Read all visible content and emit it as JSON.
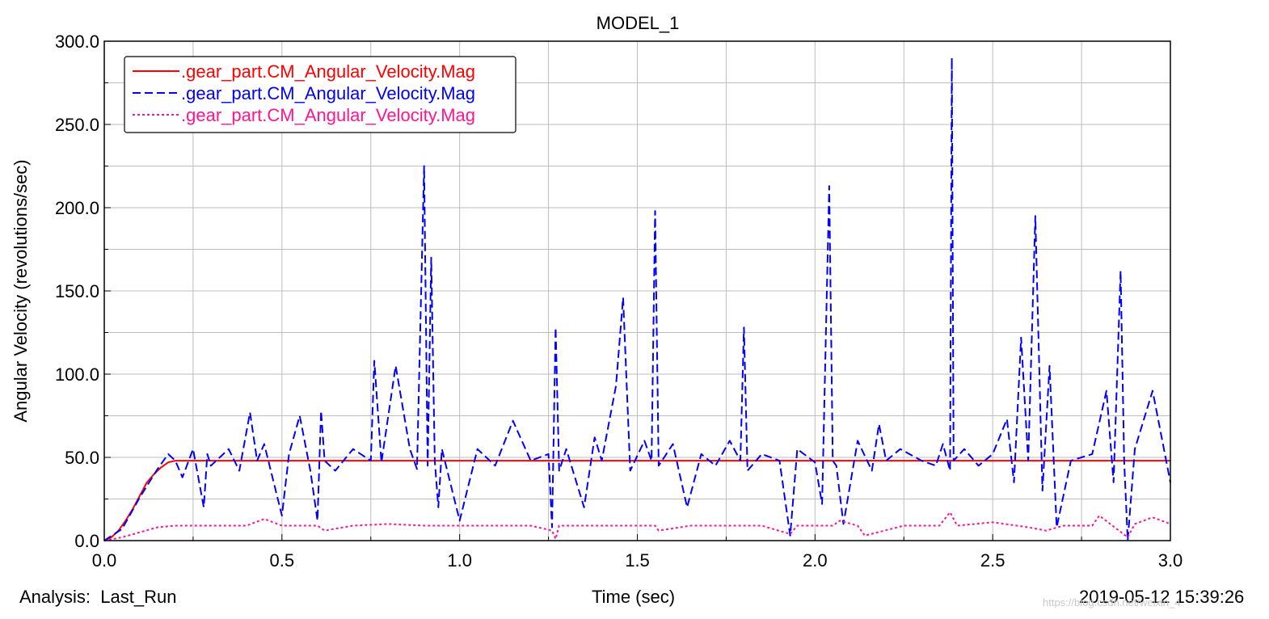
{
  "footer": {
    "analysis": "Analysis:  Last_Run",
    "timestamp": "2019-05-12 15:39:26",
    "watermark": "https://blog.csdn.net/weixin_4"
  },
  "chart_data": {
    "type": "line",
    "title": "MODEL_1",
    "xlabel": "Time (sec)",
    "ylabel": "Angular Velocity (revolutions/sec)",
    "xlim": [
      0,
      3.0
    ],
    "ylim": [
      0,
      300
    ],
    "xticks": [
      "0.0",
      "0.5",
      "1.0",
      "1.5",
      "2.0",
      "2.5",
      "3.0"
    ],
    "yticks": [
      "0.0",
      "50.0",
      "100.0",
      "150.0",
      "200.0",
      "250.0",
      "300.0"
    ],
    "grid": true,
    "legend_position": "top-left",
    "series": [
      {
        "name": ".gear_part.CM_Angular_Velocity.Mag",
        "color": "#ff0000",
        "dash": "solid",
        "x": [
          0,
          0.02,
          0.04,
          0.06,
          0.08,
          0.1,
          0.12,
          0.14,
          0.16,
          0.18,
          0.2,
          0.5,
          1.0,
          1.5,
          2.0,
          2.5,
          3.0
        ],
        "y": [
          0,
          2,
          6,
          12,
          19,
          27,
          35,
          40,
          44,
          47,
          48,
          48,
          48,
          48,
          48,
          48,
          48
        ]
      },
      {
        "name": ".gear_part.CM_Angular_Velocity.Mag",
        "color": "#0000ff",
        "dash": "dashed",
        "x": [
          0,
          0.05,
          0.1,
          0.15,
          0.18,
          0.2,
          0.22,
          0.25,
          0.28,
          0.29,
          0.3,
          0.35,
          0.38,
          0.41,
          0.43,
          0.45,
          0.5,
          0.52,
          0.55,
          0.58,
          0.6,
          0.61,
          0.62,
          0.65,
          0.7,
          0.75,
          0.76,
          0.78,
          0.82,
          0.86,
          0.88,
          0.9,
          0.91,
          0.92,
          0.93,
          0.94,
          0.95,
          1.0,
          1.05,
          1.1,
          1.15,
          1.2,
          1.25,
          1.26,
          1.27,
          1.28,
          1.3,
          1.35,
          1.38,
          1.4,
          1.44,
          1.46,
          1.48,
          1.52,
          1.54,
          1.55,
          1.56,
          1.6,
          1.64,
          1.68,
          1.72,
          1.76,
          1.79,
          1.8,
          1.81,
          1.85,
          1.9,
          1.93,
          1.95,
          2.0,
          2.02,
          2.04,
          2.05,
          2.06,
          2.08,
          2.12,
          2.16,
          2.18,
          2.2,
          2.24,
          2.3,
          2.34,
          2.36,
          2.38,
          2.385,
          2.39,
          2.42,
          2.46,
          2.5,
          2.54,
          2.56,
          2.58,
          2.6,
          2.62,
          2.64,
          2.66,
          2.68,
          2.72,
          2.78,
          2.82,
          2.84,
          2.86,
          2.87,
          2.88,
          2.9,
          2.95,
          3.0
        ],
        "y": [
          0,
          7,
          26,
          43,
          52,
          48,
          38,
          55,
          20,
          52,
          45,
          55,
          42,
          77,
          48,
          58,
          15,
          52,
          75,
          42,
          12,
          78,
          48,
          42,
          55,
          48,
          108,
          47,
          105,
          55,
          43,
          225,
          45,
          170,
          48,
          20,
          55,
          12,
          55,
          45,
          72,
          48,
          52,
          8,
          128,
          42,
          55,
          20,
          62,
          48,
          93,
          146,
          42,
          60,
          48,
          198,
          45,
          58,
          20,
          52,
          45,
          60,
          48,
          128,
          42,
          52,
          48,
          3,
          55,
          47,
          22,
          213,
          48,
          45,
          10,
          60,
          42,
          70,
          48,
          55,
          48,
          45,
          58,
          42,
          290,
          48,
          55,
          45,
          52,
          73,
          35,
          122,
          48,
          195,
          30,
          105,
          8,
          48,
          52,
          90,
          35,
          162,
          48,
          0,
          55,
          90,
          35
        ]
      },
      {
        "name": ".gear_part.CM_Angular_Velocity.Mag",
        "color": "#ff1493",
        "dash": "dotted",
        "x": [
          0,
          0.05,
          0.1,
          0.15,
          0.2,
          0.3,
          0.4,
          0.45,
          0.5,
          0.6,
          0.62,
          0.7,
          0.8,
          0.9,
          1.0,
          1.1,
          1.2,
          1.26,
          1.27,
          1.28,
          1.35,
          1.45,
          1.55,
          1.56,
          1.65,
          1.75,
          1.85,
          1.93,
          1.95,
          2.05,
          2.07,
          2.12,
          2.14,
          2.25,
          2.35,
          2.38,
          2.4,
          2.5,
          2.6,
          2.65,
          2.7,
          2.78,
          2.8,
          2.88,
          2.9,
          2.95,
          3.0
        ],
        "y": [
          0,
          2,
          5,
          8,
          9,
          9,
          9,
          13,
          9,
          9,
          6,
          9,
          10,
          9,
          9,
          9,
          9,
          6,
          1,
          9,
          9,
          9,
          9,
          6,
          9,
          9,
          9,
          4,
          9,
          9,
          12,
          9,
          3,
          9,
          9,
          17,
          9,
          11,
          8,
          6,
          9,
          9,
          15,
          2,
          10,
          14,
          10
        ]
      }
    ]
  }
}
